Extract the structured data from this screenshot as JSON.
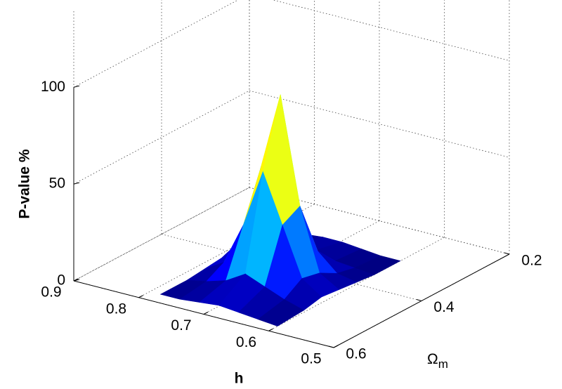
{
  "chart_data": {
    "type": "surface",
    "zlabel": "P-value %",
    "xlabel": "h",
    "ylabel": {
      "symbol": "Ω",
      "subscript": "m"
    },
    "x": [
      0.6,
      0.63,
      0.66,
      0.69,
      0.72,
      0.75,
      0.78
    ],
    "y": [
      0.3,
      0.36,
      0.4,
      0.44,
      0.48,
      0.52,
      0.58
    ],
    "z": [
      [
        0,
        0,
        1,
        2,
        3,
        1,
        0
      ],
      [
        0,
        1,
        3,
        8,
        10,
        4,
        1
      ],
      [
        1,
        2,
        12,
        40,
        35,
        8,
        2
      ],
      [
        2,
        5,
        30,
        95,
        60,
        12,
        3
      ],
      [
        2,
        4,
        20,
        55,
        30,
        6,
        2
      ],
      [
        1,
        2,
        6,
        15,
        8,
        3,
        1
      ],
      [
        1,
        1,
        2,
        3,
        2,
        1,
        1
      ]
    ],
    "colormap": "jet",
    "xlim": [
      0.5,
      0.9
    ],
    "xticks": [
      0.5,
      0.6,
      0.7,
      0.8,
      0.9
    ],
    "ylim": [
      0.2,
      0.6
    ],
    "yticks": [
      0.2,
      0.4,
      0.6
    ],
    "zlim": [
      0,
      140
    ],
    "zticks": [
      0,
      50,
      100
    ],
    "grid": true
  }
}
